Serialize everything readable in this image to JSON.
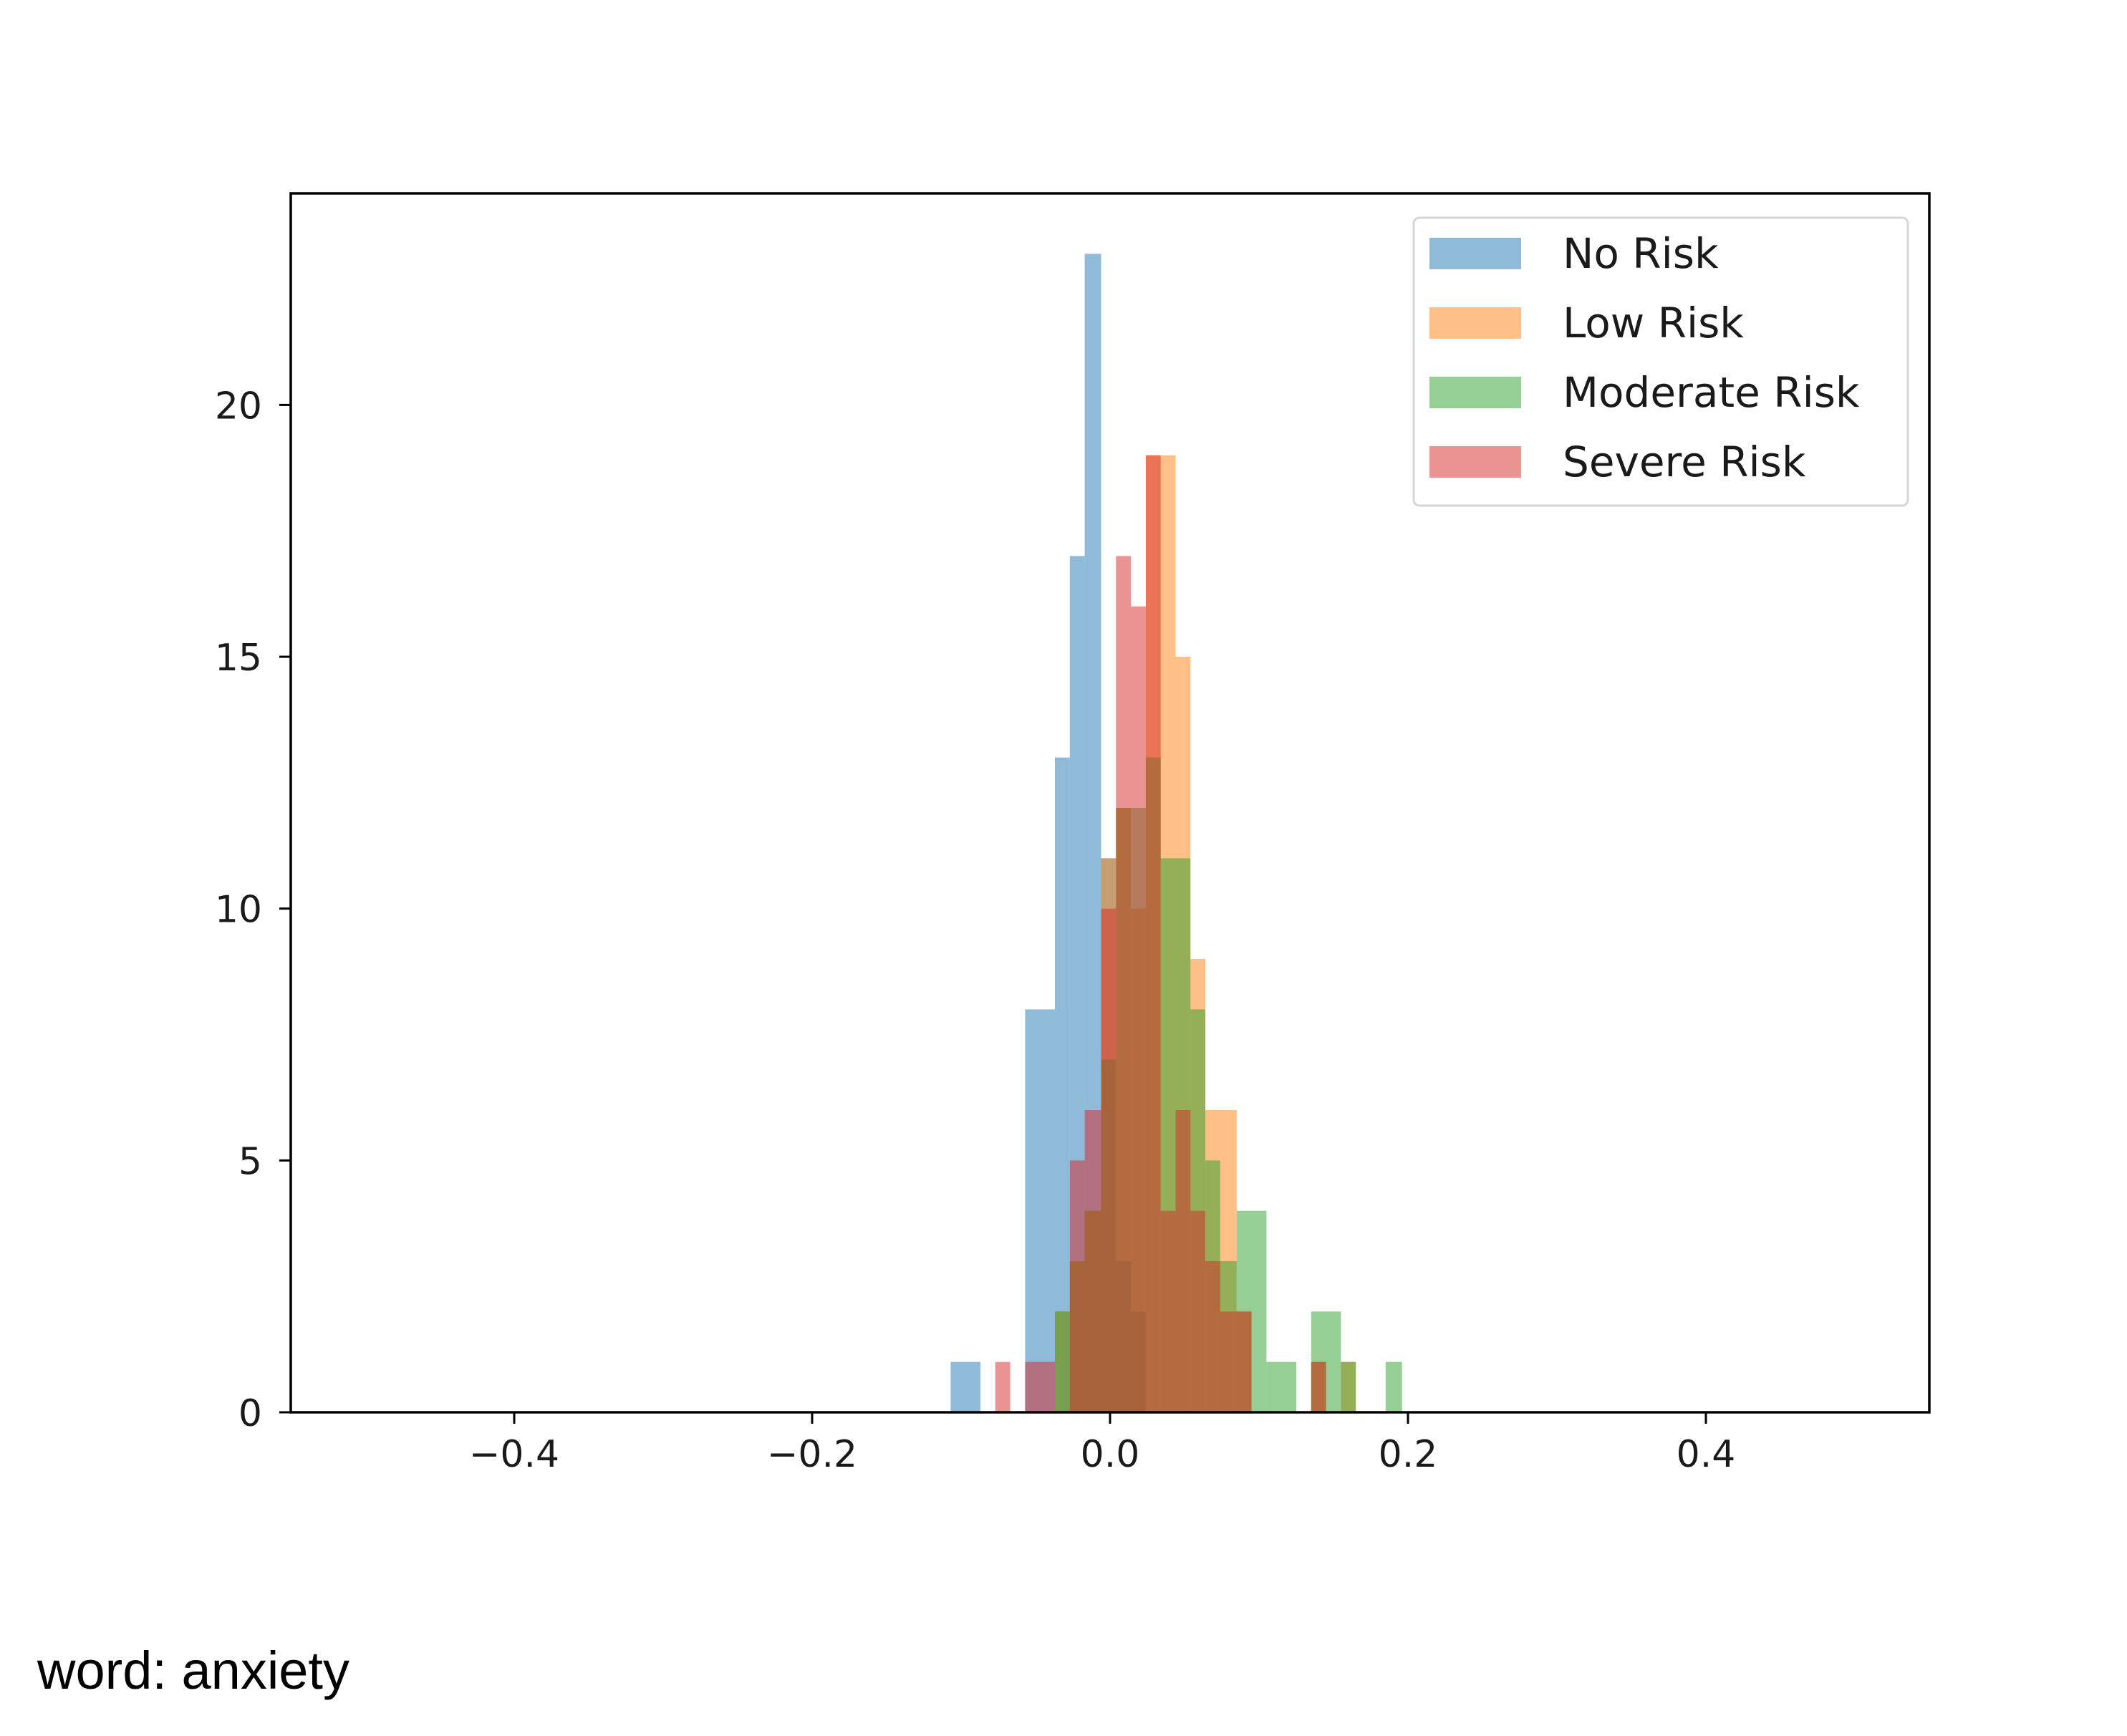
{
  "caption": "word: anxiety",
  "chart_data": {
    "type": "histogram",
    "title": "",
    "xlabel": "",
    "ylabel": "",
    "xlim": [
      -0.55,
      0.55
    ],
    "ylim": [
      0,
      24.2
    ],
    "xticks": [
      -0.4,
      -0.2,
      0.0,
      0.2,
      0.4
    ],
    "xtick_labels": [
      "−0.4",
      "−0.2",
      "0.0",
      "0.2",
      "0.4"
    ],
    "yticks": [
      0,
      5,
      10,
      15,
      20
    ],
    "ytick_labels": [
      "0",
      "5",
      "10",
      "15",
      "20"
    ],
    "grid": false,
    "legend_position": "top-right",
    "series": [
      {
        "name": "No Risk",
        "color": "#1f77b4",
        "opacity": 0.5,
        "bins": [
          {
            "x0": -0.107,
            "x1": -0.087,
            "count": 1
          },
          {
            "x0": -0.057,
            "x1": -0.037,
            "count": 8
          },
          {
            "x0": -0.037,
            "x1": -0.027,
            "count": 13
          },
          {
            "x0": -0.027,
            "x1": -0.017,
            "count": 17
          },
          {
            "x0": -0.017,
            "x1": -0.006,
            "count": 23
          },
          {
            "x0": -0.006,
            "x1": 0.004,
            "count": 11
          },
          {
            "x0": 0.004,
            "x1": 0.014,
            "count": 3
          },
          {
            "x0": 0.014,
            "x1": 0.024,
            "count": 2
          }
        ]
      },
      {
        "name": "Low Risk",
        "color": "#ff7f0e",
        "opacity": 0.5,
        "bins": [
          {
            "x0": -0.037,
            "x1": -0.027,
            "count": 2
          },
          {
            "x0": -0.027,
            "x1": -0.017,
            "count": 3
          },
          {
            "x0": -0.017,
            "x1": -0.006,
            "count": 4
          },
          {
            "x0": -0.006,
            "x1": 0.004,
            "count": 11
          },
          {
            "x0": 0.004,
            "x1": 0.014,
            "count": 12
          },
          {
            "x0": 0.014,
            "x1": 0.024,
            "count": 10
          },
          {
            "x0": 0.024,
            "x1": 0.034,
            "count": 19
          },
          {
            "x0": 0.034,
            "x1": 0.044,
            "count": 19
          },
          {
            "x0": 0.044,
            "x1": 0.054,
            "count": 15
          },
          {
            "x0": 0.054,
            "x1": 0.064,
            "count": 9
          },
          {
            "x0": 0.064,
            "x1": 0.085,
            "count": 6
          },
          {
            "x0": 0.085,
            "x1": 0.095,
            "count": 2
          },
          {
            "x0": 0.135,
            "x1": 0.145,
            "count": 1
          },
          {
            "x0": 0.155,
            "x1": 0.165,
            "count": 1
          }
        ]
      },
      {
        "name": "Moderate Risk",
        "color": "#2ca02c",
        "opacity": 0.5,
        "bins": [
          {
            "x0": -0.037,
            "x1": -0.027,
            "count": 2
          },
          {
            "x0": -0.027,
            "x1": -0.017,
            "count": 3
          },
          {
            "x0": -0.017,
            "x1": -0.006,
            "count": 4
          },
          {
            "x0": -0.006,
            "x1": 0.004,
            "count": 7
          },
          {
            "x0": 0.004,
            "x1": 0.014,
            "count": 12
          },
          {
            "x0": 0.014,
            "x1": 0.024,
            "count": 12
          },
          {
            "x0": 0.024,
            "x1": 0.034,
            "count": 13
          },
          {
            "x0": 0.034,
            "x1": 0.044,
            "count": 11
          },
          {
            "x0": 0.044,
            "x1": 0.054,
            "count": 11
          },
          {
            "x0": 0.054,
            "x1": 0.064,
            "count": 8
          },
          {
            "x0": 0.064,
            "x1": 0.074,
            "count": 5
          },
          {
            "x0": 0.074,
            "x1": 0.085,
            "count": 3
          },
          {
            "x0": 0.085,
            "x1": 0.105,
            "count": 4
          },
          {
            "x0": 0.105,
            "x1": 0.125,
            "count": 1
          },
          {
            "x0": 0.135,
            "x1": 0.155,
            "count": 2
          },
          {
            "x0": 0.155,
            "x1": 0.165,
            "count": 1
          },
          {
            "x0": 0.185,
            "x1": 0.196,
            "count": 1
          }
        ]
      },
      {
        "name": "Severe Risk",
        "color": "#d62728",
        "opacity": 0.5,
        "bins": [
          {
            "x0": -0.077,
            "x1": -0.067,
            "count": 1
          },
          {
            "x0": -0.057,
            "x1": -0.037,
            "count": 1
          },
          {
            "x0": -0.027,
            "x1": -0.017,
            "count": 5
          },
          {
            "x0": -0.017,
            "x1": -0.006,
            "count": 6
          },
          {
            "x0": -0.006,
            "x1": 0.004,
            "count": 10
          },
          {
            "x0": 0.004,
            "x1": 0.014,
            "count": 17
          },
          {
            "x0": 0.014,
            "x1": 0.024,
            "count": 16
          },
          {
            "x0": 0.024,
            "x1": 0.034,
            "count": 19
          },
          {
            "x0": 0.034,
            "x1": 0.044,
            "count": 4
          },
          {
            "x0": 0.044,
            "x1": 0.054,
            "count": 6
          },
          {
            "x0": 0.054,
            "x1": 0.064,
            "count": 4
          },
          {
            "x0": 0.064,
            "x1": 0.074,
            "count": 3
          },
          {
            "x0": 0.074,
            "x1": 0.095,
            "count": 2
          },
          {
            "x0": 0.135,
            "x1": 0.145,
            "count": 1
          }
        ]
      }
    ]
  }
}
